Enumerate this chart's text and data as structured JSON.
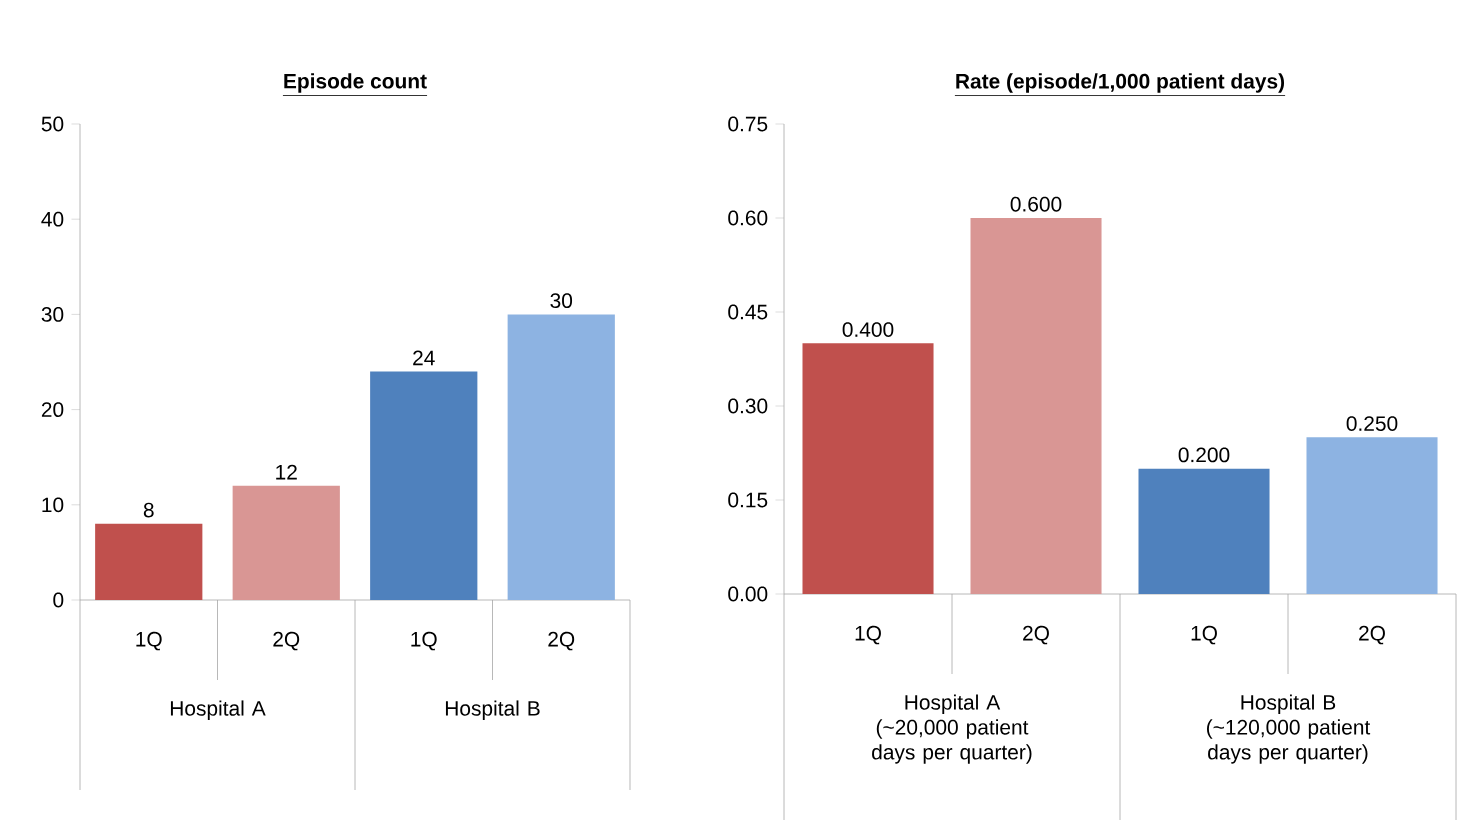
{
  "chart_data": [
    {
      "type": "bar",
      "title": "Episode count",
      "categories": [
        "1Q",
        "2Q",
        "1Q",
        "2Q"
      ],
      "values": [
        8,
        12,
        24,
        30
      ],
      "colors": [
        "#c0504d",
        "#d99694",
        "#4f81bd",
        "#8db3e2"
      ],
      "ylim": [
        0,
        50
      ],
      "yticks": [
        0,
        10,
        20,
        30,
        40,
        50
      ],
      "data_labels": true,
      "annotations": [
        "Hospital A",
        "Hospital B"
      ]
    },
    {
      "type": "bar",
      "title": "Rate (episode/1,000 patient days)",
      "categories": [
        "1Q",
        "2Q",
        "1Q",
        "2Q"
      ],
      "values": [
        0.4,
        0.6,
        0.2,
        0.25
      ],
      "colors": [
        "#c0504d",
        "#d99694",
        "#4f81bd",
        "#8db3e2"
      ],
      "ylim": [
        0,
        0.75
      ],
      "yticks": [
        {
          "value": 0,
          "label": "0.00"
        },
        {
          "value": 0.15,
          "label": "0.15"
        },
        {
          "value": 0.3,
          "label": "0.30"
        },
        {
          "value": 0.45,
          "label": "0.45"
        },
        {
          "value": 0.6,
          "label": "0.60"
        },
        {
          "value": 0.75,
          "label": "0.75"
        }
      ],
      "value_labels": [
        "0.400",
        "0.600",
        "0.200",
        "0.250"
      ],
      "annotations": [
        "Hospital A (~20,000 patient days per quarter)",
        "Hospital B (~120,000 patient days per quarter)"
      ]
    }
  ]
}
